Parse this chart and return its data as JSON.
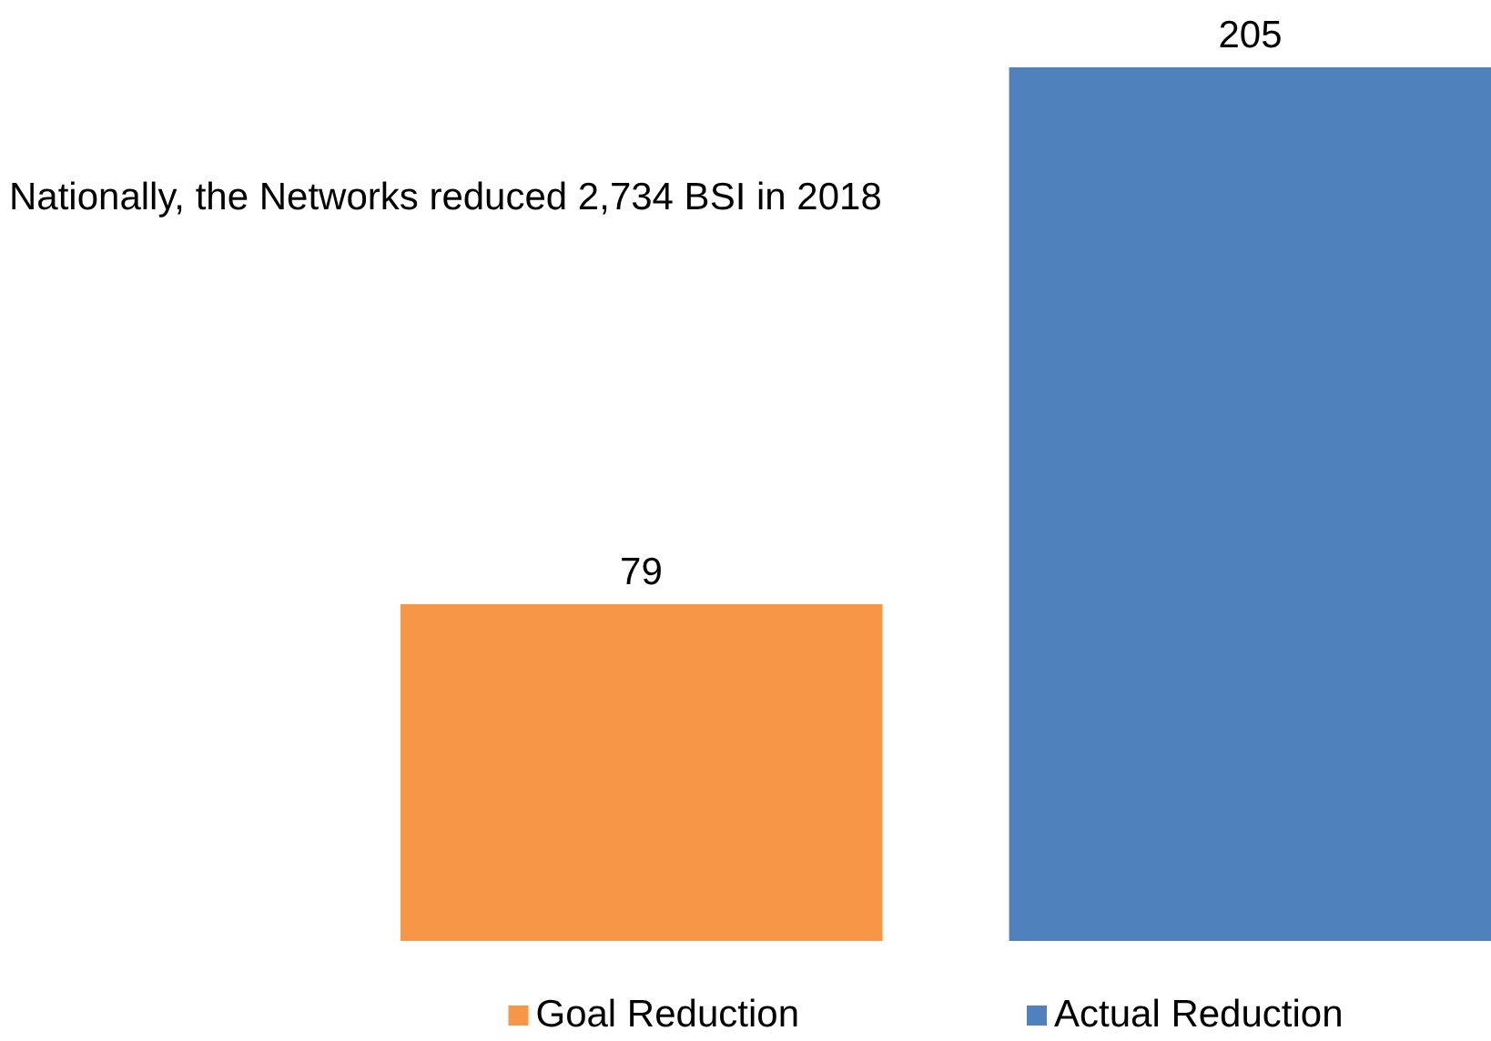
{
  "chart_data": {
    "type": "bar",
    "categories": [
      null
    ],
    "series": [
      {
        "name": "Goal Reduction",
        "color": "#f79646",
        "values": [
          79
        ]
      },
      {
        "name": "Actual Reduction",
        "color": "#4f81bd",
        "values": [
          205
        ]
      }
    ],
    "data_labels": true,
    "legend": "bottom",
    "tick_labels": false,
    "annotations": [
      "Nationally, the Networks reduced 2,734 BSI in 2018"
    ]
  }
}
